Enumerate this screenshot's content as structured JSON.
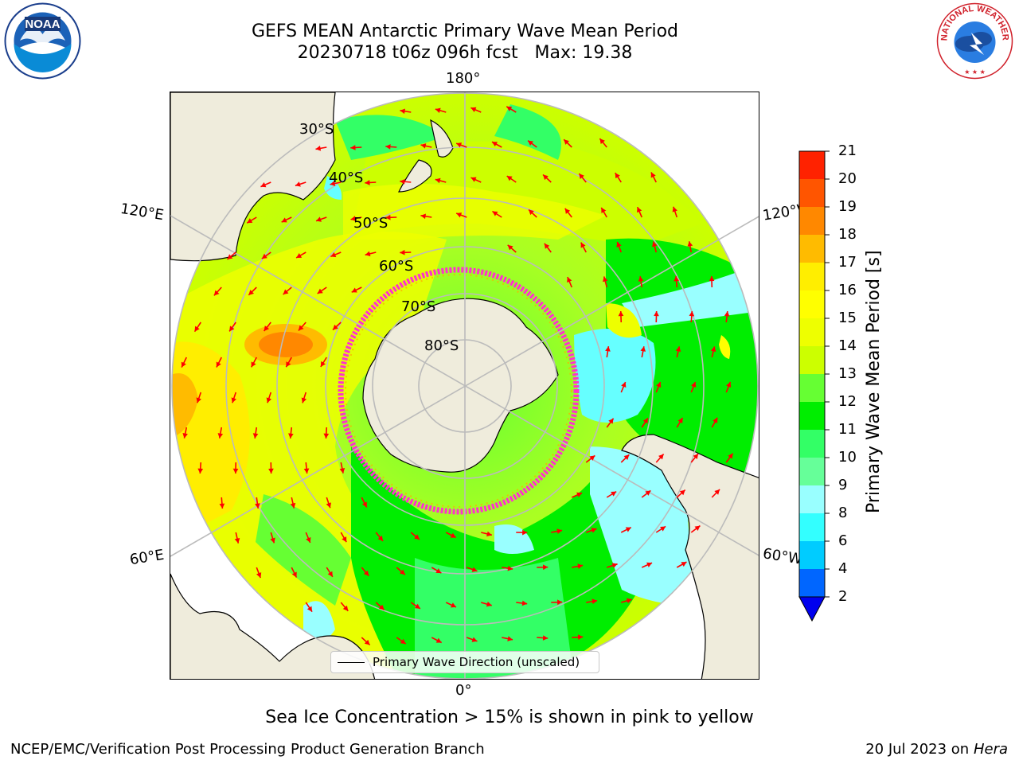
{
  "title": {
    "line1": "GEFS MEAN Antarctic Primary Wave Mean Period",
    "line2": "20230718 t06z 096h fcst   Max: 19.38"
  },
  "map": {
    "projection": "south polar stereographic",
    "lon_labels": {
      "top": "180°",
      "bottom": "0°",
      "upper_left": "120°E",
      "upper_right": "120°W",
      "lower_left": "60°E",
      "lower_right": "60°W"
    },
    "lat_labels": [
      "30°S",
      "40°S",
      "50°S",
      "60°S",
      "70°S",
      "80°S"
    ],
    "legend": "Primary Wave Direction (unscaled)",
    "colors": {
      "land": "#efecdc",
      "arrow": "#ff0000",
      "grid": "#bbbbbb",
      "sea_ice_edge": "#ff33cc"
    }
  },
  "colorbar": {
    "label": "Primary Wave Mean Period [s]",
    "ticks": [
      "2",
      "4",
      "6",
      "8",
      "9",
      "10",
      "11",
      "12",
      "13",
      "14",
      "15",
      "16",
      "17",
      "18",
      "19",
      "20",
      "21"
    ],
    "colors": [
      "#0066ff",
      "#00ccff",
      "#33ffff",
      "#99ffff",
      "#66ff99",
      "#33ff66",
      "#00ee00",
      "#66ff33",
      "#ccff00",
      "#eeff00",
      "#ffff00",
      "#ffee00",
      "#ffbb00",
      "#ff8800",
      "#ff5500",
      "#ff2200"
    ],
    "extend_color": "#0000ee"
  },
  "note": "Sea Ice Concentration > 15% is shown in pink to yellow",
  "footer": {
    "left": "NCEP/EMC/Verification Post Processing Product Generation Branch",
    "right_prefix": "20 Jul 2023 on ",
    "right_italic": "Hera"
  },
  "logos": {
    "left": "NOAA",
    "right": "NATIONAL WEATHER SERVICE"
  }
}
